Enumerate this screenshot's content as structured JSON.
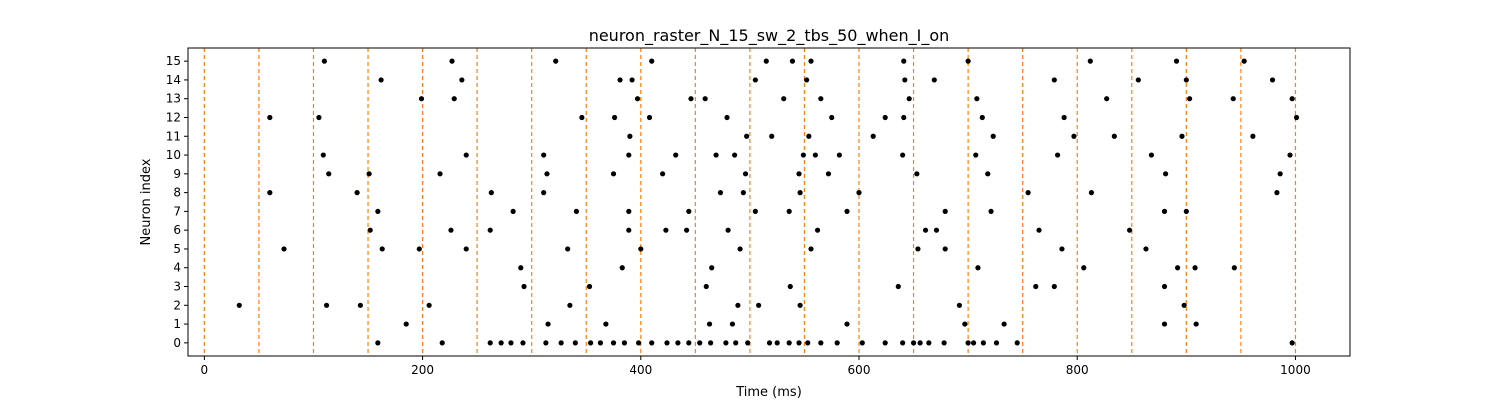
{
  "chart_data": {
    "type": "scatter",
    "title": "neuron_raster_N_15_sw_2_tbs_50_when_I_on",
    "xlabel": "Time (ms)",
    "ylabel": "Neuron index",
    "xlim": [
      -15,
      1050
    ],
    "ylim": [
      -0.7,
      15.7
    ],
    "xticks": [
      0,
      200,
      400,
      600,
      800,
      1000
    ],
    "yticks": [
      0,
      1,
      2,
      3,
      4,
      5,
      6,
      7,
      8,
      9,
      10,
      11,
      12,
      13,
      14,
      15
    ],
    "grid": false,
    "legend": "none",
    "marker_color": "#000000",
    "vline_color": "#ff7f0e",
    "vlines": [
      0,
      50,
      100,
      150,
      200,
      250,
      300,
      350,
      400,
      450,
      500,
      550,
      600,
      650,
      700,
      750,
      800,
      850,
      900,
      950,
      1000
    ],
    "points": [
      [
        159,
        0
      ],
      [
        218,
        0
      ],
      [
        262,
        0
      ],
      [
        272,
        0
      ],
      [
        281,
        0
      ],
      [
        292,
        0
      ],
      [
        313,
        0
      ],
      [
        327,
        0
      ],
      [
        340,
        0
      ],
      [
        354,
        0
      ],
      [
        363,
        0
      ],
      [
        375,
        0
      ],
      [
        385,
        0
      ],
      [
        398,
        0
      ],
      [
        410,
        0
      ],
      [
        424,
        0
      ],
      [
        434,
        0
      ],
      [
        444,
        0
      ],
      [
        454,
        0
      ],
      [
        464,
        0
      ],
      [
        478,
        0
      ],
      [
        487,
        0
      ],
      [
        498,
        0
      ],
      [
        518,
        0
      ],
      [
        525,
        0
      ],
      [
        536,
        0
      ],
      [
        545,
        0
      ],
      [
        553,
        0
      ],
      [
        565,
        0
      ],
      [
        580,
        0
      ],
      [
        603,
        0
      ],
      [
        624,
        0
      ],
      [
        640,
        0
      ],
      [
        650,
        0
      ],
      [
        656,
        0
      ],
      [
        664,
        0
      ],
      [
        678,
        0
      ],
      [
        700,
        0
      ],
      [
        705,
        0
      ],
      [
        714,
        0
      ],
      [
        726,
        0
      ],
      [
        745,
        0
      ],
      [
        997,
        0
      ],
      [
        185,
        1
      ],
      [
        315,
        1
      ],
      [
        368,
        1
      ],
      [
        463,
        1
      ],
      [
        484,
        1
      ],
      [
        589,
        1
      ],
      [
        697,
        1
      ],
      [
        733,
        1
      ],
      [
        880,
        1
      ],
      [
        909,
        1
      ],
      [
        32,
        2
      ],
      [
        112,
        2
      ],
      [
        143,
        2
      ],
      [
        206,
        2
      ],
      [
        335,
        2
      ],
      [
        489,
        2
      ],
      [
        508,
        2
      ],
      [
        546,
        2
      ],
      [
        692,
        2
      ],
      [
        898,
        2
      ],
      [
        293,
        3
      ],
      [
        353,
        3
      ],
      [
        460,
        3
      ],
      [
        537,
        3
      ],
      [
        636,
        3
      ],
      [
        762,
        3
      ],
      [
        779,
        3
      ],
      [
        880,
        3
      ],
      [
        290,
        4
      ],
      [
        383,
        4
      ],
      [
        465,
        4
      ],
      [
        709,
        4
      ],
      [
        806,
        4
      ],
      [
        892,
        4
      ],
      [
        908,
        4
      ],
      [
        944,
        4
      ],
      [
        73,
        5
      ],
      [
        163,
        5
      ],
      [
        197,
        5
      ],
      [
        240,
        5
      ],
      [
        333,
        5
      ],
      [
        400,
        5
      ],
      [
        491,
        5
      ],
      [
        556,
        5
      ],
      [
        654,
        5
      ],
      [
        679,
        5
      ],
      [
        786,
        5
      ],
      [
        863,
        5
      ],
      [
        152,
        6
      ],
      [
        226,
        6
      ],
      [
        262,
        6
      ],
      [
        389,
        6
      ],
      [
        423,
        6
      ],
      [
        442,
        6
      ],
      [
        480,
        6
      ],
      [
        562,
        6
      ],
      [
        661,
        6
      ],
      [
        671,
        6
      ],
      [
        765,
        6
      ],
      [
        848,
        6
      ],
      [
        159,
        7
      ],
      [
        283,
        7
      ],
      [
        341,
        7
      ],
      [
        389,
        7
      ],
      [
        444,
        7
      ],
      [
        505,
        7
      ],
      [
        536,
        7
      ],
      [
        589,
        7
      ],
      [
        679,
        7
      ],
      [
        721,
        7
      ],
      [
        880,
        7
      ],
      [
        900,
        7
      ],
      [
        60,
        8
      ],
      [
        140,
        8
      ],
      [
        263,
        8
      ],
      [
        311,
        8
      ],
      [
        473,
        8
      ],
      [
        494,
        8
      ],
      [
        546,
        8
      ],
      [
        600,
        8
      ],
      [
        755,
        8
      ],
      [
        813,
        8
      ],
      [
        983,
        8
      ],
      [
        114,
        9
      ],
      [
        151,
        9
      ],
      [
        216,
        9
      ],
      [
        314,
        9
      ],
      [
        375,
        9
      ],
      [
        420,
        9
      ],
      [
        496,
        9
      ],
      [
        545,
        9
      ],
      [
        572,
        9
      ],
      [
        653,
        9
      ],
      [
        718,
        9
      ],
      [
        881,
        9
      ],
      [
        986,
        9
      ],
      [
        109,
        10
      ],
      [
        240,
        10
      ],
      [
        311,
        10
      ],
      [
        389,
        10
      ],
      [
        432,
        10
      ],
      [
        469,
        10
      ],
      [
        486,
        10
      ],
      [
        549,
        10
      ],
      [
        560,
        10
      ],
      [
        582,
        10
      ],
      [
        640,
        10
      ],
      [
        707,
        10
      ],
      [
        782,
        10
      ],
      [
        868,
        10
      ],
      [
        995,
        10
      ],
      [
        390,
        11
      ],
      [
        497,
        11
      ],
      [
        520,
        11
      ],
      [
        554,
        11
      ],
      [
        613,
        11
      ],
      [
        723,
        11
      ],
      [
        797,
        11
      ],
      [
        834,
        11
      ],
      [
        896,
        11
      ],
      [
        961,
        11
      ],
      [
        60,
        12
      ],
      [
        105,
        12
      ],
      [
        346,
        12
      ],
      [
        376,
        12
      ],
      [
        408,
        12
      ],
      [
        479,
        12
      ],
      [
        575,
        12
      ],
      [
        624,
        12
      ],
      [
        641,
        12
      ],
      [
        713,
        12
      ],
      [
        788,
        12
      ],
      [
        1001,
        12
      ],
      [
        199,
        13
      ],
      [
        229,
        13
      ],
      [
        397,
        13
      ],
      [
        446,
        13
      ],
      [
        459,
        13
      ],
      [
        531,
        13
      ],
      [
        565,
        13
      ],
      [
        646,
        13
      ],
      [
        708,
        13
      ],
      [
        827,
        13
      ],
      [
        903,
        13
      ],
      [
        943,
        13
      ],
      [
        997,
        13
      ],
      [
        162,
        14
      ],
      [
        236,
        14
      ],
      [
        381,
        14
      ],
      [
        392,
        14
      ],
      [
        505,
        14
      ],
      [
        552,
        14
      ],
      [
        642,
        14
      ],
      [
        669,
        14
      ],
      [
        779,
        14
      ],
      [
        856,
        14
      ],
      [
        900,
        14
      ],
      [
        979,
        14
      ],
      [
        110,
        15
      ],
      [
        227,
        15
      ],
      [
        322,
        15
      ],
      [
        410,
        15
      ],
      [
        515,
        15
      ],
      [
        539,
        15
      ],
      [
        556,
        15
      ],
      [
        641,
        15
      ],
      [
        700,
        15
      ],
      [
        812,
        15
      ],
      [
        891,
        15
      ],
      [
        953,
        15
      ]
    ]
  }
}
